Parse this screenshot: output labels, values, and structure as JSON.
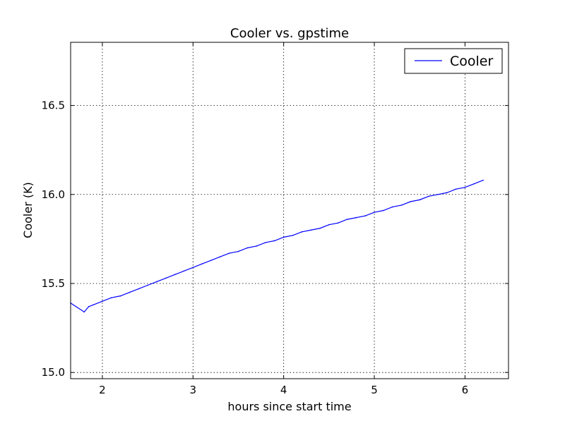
{
  "chart_data": {
    "type": "line",
    "title": "Cooler vs. gpstime",
    "xlabel": "hours since start time",
    "ylabel": "Cooler (K)",
    "xlim": [
      1.65,
      6.48
    ],
    "ylim": [
      14.965,
      16.855
    ],
    "xticks": [
      2,
      3,
      4,
      5,
      6
    ],
    "xtick_labels": [
      "2",
      "3",
      "4",
      "5",
      "6"
    ],
    "yticks": [
      15.0,
      15.5,
      16.0,
      16.5
    ],
    "ytick_labels": [
      "15.0",
      "15.5",
      "16.0",
      "16.5"
    ],
    "grid": true,
    "legend_position": "upper right",
    "series": [
      {
        "name": "Cooler",
        "color": "#0000ff",
        "x": [
          1.65,
          1.8,
          1.85,
          1.9,
          2.0,
          2.1,
          2.2,
          2.3,
          2.4,
          2.5,
          2.6,
          2.7,
          2.8,
          2.9,
          3.0,
          3.1,
          3.2,
          3.3,
          3.4,
          3.5,
          3.6,
          3.7,
          3.8,
          3.9,
          4.0,
          4.1,
          4.2,
          4.3,
          4.4,
          4.5,
          4.6,
          4.7,
          4.8,
          4.9,
          5.0,
          5.1,
          5.2,
          5.3,
          5.4,
          5.5,
          5.6,
          5.7,
          5.8,
          5.9,
          6.0,
          6.1,
          6.2
        ],
        "y": [
          15.39,
          15.34,
          15.37,
          15.38,
          15.4,
          15.42,
          15.43,
          15.45,
          15.47,
          15.49,
          15.51,
          15.53,
          15.55,
          15.57,
          15.59,
          15.61,
          15.63,
          15.65,
          15.67,
          15.68,
          15.7,
          15.71,
          15.73,
          15.74,
          15.76,
          15.77,
          15.79,
          15.8,
          15.81,
          15.83,
          15.84,
          15.86,
          15.87,
          15.88,
          15.9,
          15.91,
          15.93,
          15.94,
          15.96,
          15.97,
          15.99,
          16.0,
          16.01,
          16.03,
          16.04,
          16.06,
          16.08
        ]
      }
    ]
  }
}
